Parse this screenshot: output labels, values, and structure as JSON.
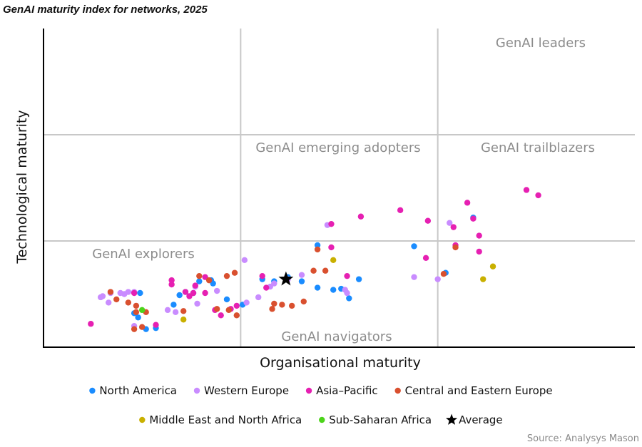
{
  "chart_data": {
    "type": "scatter",
    "title": "GenAI maturity index for networks, 2025",
    "xlabel": "Organisational maturity",
    "ylabel": "Technological maturity",
    "xlim": [
      0,
      3
    ],
    "ylim": [
      0,
      3
    ],
    "thresholds": [
      1,
      2
    ],
    "quadrant_labels": {
      "leaders": "GenAI leaders",
      "emerging": "GenAI emerging adopters",
      "trailblazers": "GenAI trailblazers",
      "explorers": "GenAI explorers",
      "navigators": "GenAI navigators"
    },
    "source": "Source: Analysys Mason",
    "series": [
      {
        "name": "North America",
        "color": "#1a8cff",
        "points": [
          [
            0.49,
            0.51
          ],
          [
            0.46,
            0.32
          ],
          [
            0.57,
            0.18
          ],
          [
            0.48,
            0.28
          ],
          [
            0.52,
            0.17
          ],
          [
            0.69,
            0.49
          ],
          [
            0.66,
            0.4
          ],
          [
            0.72,
            0.52
          ],
          [
            0.79,
            0.62
          ],
          [
            0.76,
            0.51
          ],
          [
            0.86,
            0.6
          ],
          [
            0.85,
            0.63
          ],
          [
            0.93,
            0.45
          ],
          [
            1.01,
            0.4
          ],
          [
            1.11,
            0.64
          ],
          [
            1.17,
            0.62
          ],
          [
            1.24,
            0.66
          ],
          [
            1.31,
            0.62
          ],
          [
            1.39,
            0.56
          ],
          [
            1.51,
            0.55
          ],
          [
            1.55,
            0.46
          ],
          [
            1.39,
            0.96
          ],
          [
            1.47,
            0.54
          ],
          [
            1.6,
            0.64
          ],
          [
            1.88,
            0.95
          ],
          [
            2.04,
            0.7
          ],
          [
            2.18,
            1.22
          ]
        ]
      },
      {
        "name": "Western Europe",
        "color": "#c98cff",
        "points": [
          [
            0.29,
            0.47
          ],
          [
            0.3,
            0.48
          ],
          [
            0.34,
            0.51
          ],
          [
            0.39,
            0.51
          ],
          [
            0.41,
            0.5
          ],
          [
            0.43,
            0.52
          ],
          [
            0.46,
            0.52
          ],
          [
            0.33,
            0.42
          ],
          [
            0.46,
            0.2
          ],
          [
            0.63,
            0.35
          ],
          [
            0.67,
            0.33
          ],
          [
            0.78,
            0.41
          ],
          [
            0.88,
            0.53
          ],
          [
            0.77,
            0.57
          ],
          [
            1.02,
            0.82
          ],
          [
            1.03,
            0.42
          ],
          [
            1.09,
            0.47
          ],
          [
            1.15,
            0.57
          ],
          [
            1.17,
            0.6
          ],
          [
            1.24,
            0.64
          ],
          [
            1.31,
            0.68
          ],
          [
            1.44,
            1.15
          ],
          [
            1.53,
            0.54
          ],
          [
            1.54,
            0.51
          ],
          [
            1.88,
            0.66
          ],
          [
            2.0,
            0.64
          ],
          [
            2.06,
            1.17
          ]
        ]
      },
      {
        "name": "Asia–Pacific",
        "color": "#e620b2",
        "points": [
          [
            0.24,
            0.22
          ],
          [
            0.46,
            0.51
          ],
          [
            0.57,
            0.21
          ],
          [
            0.65,
            0.63
          ],
          [
            0.65,
            0.59
          ],
          [
            0.72,
            0.52
          ],
          [
            0.74,
            0.48
          ],
          [
            0.77,
            0.58
          ],
          [
            0.76,
            0.51
          ],
          [
            0.82,
            0.66
          ],
          [
            0.82,
            0.51
          ],
          [
            0.87,
            0.35
          ],
          [
            0.9,
            0.3
          ],
          [
            0.95,
            0.36
          ],
          [
            0.98,
            0.39
          ],
          [
            1.11,
            0.67
          ],
          [
            1.13,
            0.56
          ],
          [
            1.46,
            1.16
          ],
          [
            1.46,
            0.94
          ],
          [
            1.54,
            0.67
          ],
          [
            1.61,
            1.23
          ],
          [
            1.81,
            1.29
          ],
          [
            1.94,
            0.84
          ],
          [
            1.95,
            1.19
          ],
          [
            2.15,
            1.36
          ],
          [
            2.08,
            1.13
          ],
          [
            2.09,
            0.96
          ],
          [
            2.18,
            1.21
          ],
          [
            2.21,
            1.05
          ],
          [
            2.21,
            0.9
          ],
          [
            2.45,
            1.48
          ],
          [
            2.51,
            1.43
          ]
        ]
      },
      {
        "name": "Central and Eastern Europe",
        "color": "#d9502f",
        "points": [
          [
            0.34,
            0.52
          ],
          [
            0.37,
            0.45
          ],
          [
            0.43,
            0.42
          ],
          [
            0.47,
            0.39
          ],
          [
            0.47,
            0.33
          ],
          [
            0.46,
            0.17
          ],
          [
            0.5,
            0.19
          ],
          [
            0.52,
            0.33
          ],
          [
            0.71,
            0.34
          ],
          [
            0.79,
            0.67
          ],
          [
            0.84,
            0.63
          ],
          [
            0.88,
            0.36
          ],
          [
            0.93,
            0.67
          ],
          [
            0.97,
            0.7
          ],
          [
            0.94,
            0.35
          ],
          [
            0.98,
            0.3
          ],
          [
            1.16,
            0.36
          ],
          [
            1.17,
            0.41
          ],
          [
            1.21,
            0.4
          ],
          [
            1.26,
            0.39
          ],
          [
            1.32,
            0.43
          ],
          [
            1.37,
            0.72
          ],
          [
            1.39,
            0.92
          ],
          [
            1.43,
            0.72
          ],
          [
            2.03,
            0.69
          ],
          [
            2.09,
            0.94
          ]
        ]
      },
      {
        "name": "Middle East and North Africa",
        "color": "#c9b000",
        "points": [
          [
            0.71,
            0.26
          ],
          [
            1.47,
            0.82
          ],
          [
            2.23,
            0.64
          ],
          [
            2.28,
            0.76
          ]
        ]
      },
      {
        "name": "Sub-Saharan Africa",
        "color": "#4cd41a",
        "points": [
          [
            0.5,
            0.35
          ]
        ]
      },
      {
        "name": "Average",
        "color": "#000000",
        "marker": "star",
        "points": [
          [
            1.23,
            0.64
          ]
        ]
      }
    ]
  }
}
